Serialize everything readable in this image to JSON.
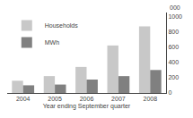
{
  "chart_data": {
    "type": "bar",
    "xlabel": "Year ending September quarter",
    "ylabel": "000",
    "categories": [
      "2004",
      "2005",
      "2006",
      "2007",
      "2008"
    ],
    "series": [
      {
        "name": "Households",
        "color": "#c8c8c8",
        "values": [
          160,
          220,
          340,
          620,
          870
        ]
      },
      {
        "name": "MWh",
        "color": "#808080",
        "values": [
          100,
          110,
          175,
          220,
          300
        ]
      }
    ],
    "ylim": [
      0,
      1050
    ],
    "yticks": [
      0,
      200,
      400,
      600,
      800,
      1000
    ],
    "grid": false,
    "legend": "upper left"
  }
}
